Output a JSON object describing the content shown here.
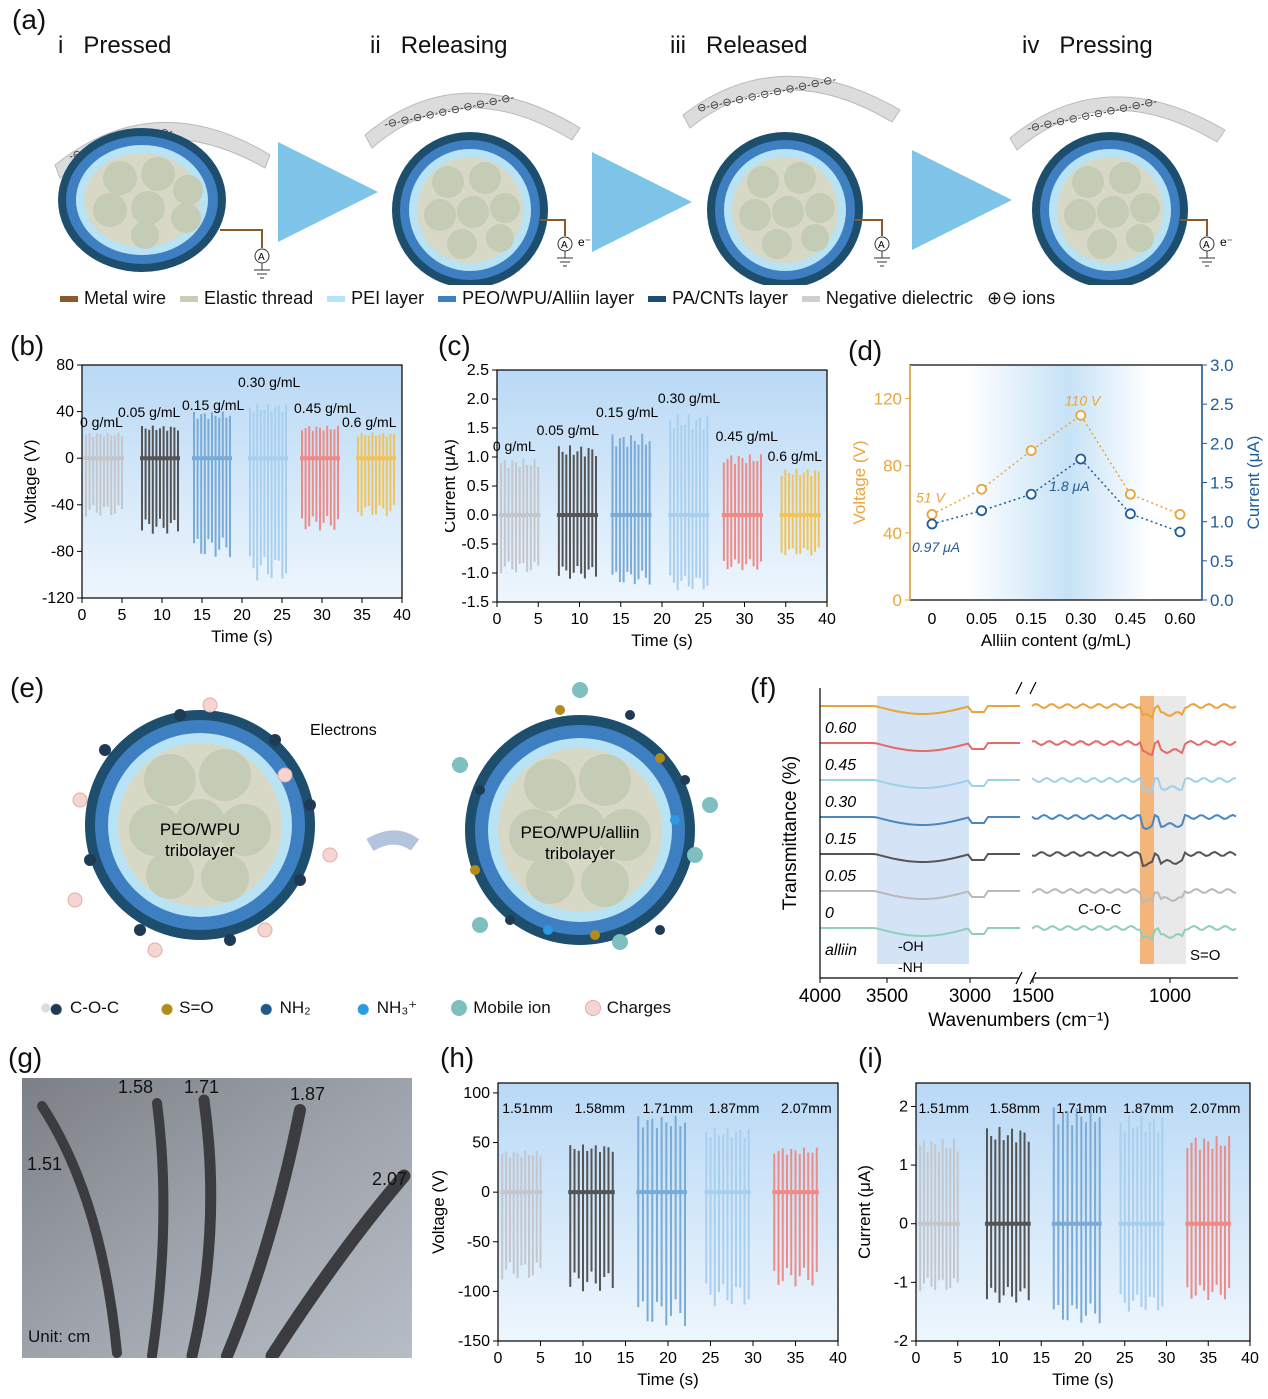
{
  "panel_a": {
    "label": "(a)",
    "stages": [
      {
        "num": "i",
        "name": "Pressed",
        "arc": "-⊖-⊖-⊖-⊖-⊖-⊖-⊖-⊖-"
      },
      {
        "num": "ii",
        "name": "Releasing",
        "arc": "-⊖-⊖-⊖-⊖-⊖-⊖-⊖-⊖-⊖-⊖-"
      },
      {
        "num": "iii",
        "name": "Released",
        "arc": "⊖-⊖-⊖-⊖-⊖-⊖-⊖-⊖-⊖-⊖-⊖-"
      },
      {
        "num": "iv",
        "name": "Pressing",
        "arc": "-⊖-⊖-⊖-⊖-⊖-⊖-⊖-⊖-⊖-⊖-"
      }
    ],
    "electron_label": "e⁻",
    "ammeter": "A",
    "legend": [
      {
        "label": "Metal wire",
        "color": "#8b5a2b"
      },
      {
        "label": "Elastic thread",
        "color": "#c9cdb8"
      },
      {
        "label": "PEI layer",
        "color": "#b7e3f5"
      },
      {
        "label": "PEO/WPU/Alliin layer",
        "color": "#3d7fc0"
      },
      {
        "label": "PA/CNTs layer",
        "color": "#1e4e6e"
      },
      {
        "label": "Negative dielectric",
        "color": "#cfcfcf"
      },
      {
        "label": "⊕⊖ ions",
        "color": ""
      }
    ]
  },
  "panel_b": {
    "label": "(b)",
    "chart_data": {
      "type": "line",
      "xlabel": "Time (s)",
      "ylabel": "Voltage (V)",
      "xlim": [
        0,
        40
      ],
      "ylim": [
        -120,
        80
      ],
      "xticks": [
        "0",
        "5",
        "10",
        "15",
        "20",
        "25",
        "30",
        "35",
        "40"
      ],
      "yticks": [
        "-120",
        "-80",
        "-40",
        "0",
        "40",
        "80"
      ],
      "series": [
        {
          "name": "0 g/mL",
          "color": "#c4c6cc",
          "x_range": [
            0.5,
            5
          ],
          "peak": 22,
          "valley": -50
        },
        {
          "name": "0.05 g/mL",
          "color": "#555555",
          "x_range": [
            7.5,
            12
          ],
          "peak": 28,
          "valley": -65
        },
        {
          "name": "0.15 g/mL",
          "color": "#7aaad6",
          "x_range": [
            14,
            18.5
          ],
          "peak": 40,
          "valley": -85
        },
        {
          "name": "0.30 g/mL",
          "color": "#a9cfee",
          "x_range": [
            21,
            25.5
          ],
          "peak": 47,
          "valley": -105
        },
        {
          "name": "0.45 g/mL",
          "color": "#ee8b86",
          "x_range": [
            27.5,
            32
          ],
          "peak": 28,
          "valley": -62
        },
        {
          "name": "0.6 g/mL",
          "color": "#f0c45a",
          "x_range": [
            34.5,
            39
          ],
          "peak": 22,
          "valley": -50
        }
      ]
    }
  },
  "panel_c": {
    "label": "(c)",
    "chart_data": {
      "type": "line",
      "xlabel": "Time (s)",
      "ylabel": "Current (μA)",
      "xlim": [
        0,
        40
      ],
      "ylim": [
        -1.5,
        2.5
      ],
      "xticks": [
        "0",
        "5",
        "10",
        "15",
        "20",
        "25",
        "30",
        "35",
        "40"
      ],
      "yticks": [
        "-1.5",
        "-1.0",
        "-0.5",
        "0.0",
        "0.5",
        "1.0",
        "1.5",
        "2.0",
        "2.5"
      ],
      "series": [
        {
          "name": "0 g/mL",
          "color": "#c4c6cc",
          "x_range": [
            0.5,
            5
          ],
          "peak": 0.97,
          "valley": -1.0
        },
        {
          "name": "0.05 g/mL",
          "color": "#555555",
          "x_range": [
            7.5,
            12
          ],
          "peak": 1.2,
          "valley": -1.1
        },
        {
          "name": "0.15 g/mL",
          "color": "#7aaad6",
          "x_range": [
            14,
            18.5
          ],
          "peak": 1.4,
          "valley": -1.2
        },
        {
          "name": "0.30 g/mL",
          "color": "#a9cfee",
          "x_range": [
            21,
            25.5
          ],
          "peak": 1.75,
          "valley": -1.3
        },
        {
          "name": "0.45 g/mL",
          "color": "#ee8b86",
          "x_range": [
            27.5,
            32
          ],
          "peak": 1.05,
          "valley": -0.95
        },
        {
          "name": "0.6 g/mL",
          "color": "#f0c45a",
          "x_range": [
            34.5,
            39
          ],
          "peak": 0.8,
          "valley": -0.7
        }
      ]
    }
  },
  "panel_d": {
    "label": "(d)",
    "chart_data": {
      "type": "line",
      "xlabel": "Alliin content (g/mL)",
      "ylabel_left": "Voltage (V)",
      "ylabel_right": "Current (μA)",
      "categories": [
        "0",
        "0.05",
        "0.15",
        "0.30",
        "0.45",
        "0.60"
      ],
      "ylim_left": [
        0,
        140
      ],
      "ylim_right": [
        0,
        3.0
      ],
      "yticks_left": [
        "0",
        "40",
        "80",
        "120"
      ],
      "yticks_right": [
        "0.0",
        "0.5",
        "1.0",
        "1.5",
        "2.0",
        "2.5",
        "3.0"
      ],
      "series": [
        {
          "name": "Voltage",
          "axis": "left",
          "color": "#e8a53a",
          "values": [
            51,
            66,
            89,
            110,
            63,
            51
          ]
        },
        {
          "name": "Current",
          "axis": "right",
          "color": "#1f5c99",
          "values": [
            0.97,
            1.14,
            1.35,
            1.8,
            1.1,
            0.87
          ]
        }
      ],
      "annotations": [
        "51 V",
        "110 V",
        "1.8 μA",
        "0.97 μA"
      ]
    }
  },
  "panel_e": {
    "label": "(e)",
    "left_text": [
      "PEO/WPU",
      "tribolayer"
    ],
    "right_text": [
      "PEO/WPU/alliin",
      "tribolayer"
    ],
    "electrons_label": "Electrons",
    "legend": [
      "C-O-C",
      "S=O",
      "NH₂",
      "NH₃⁺",
      "Mobile ion",
      "Charges"
    ]
  },
  "panel_f": {
    "label": "(f)",
    "ylabel": "Transmittance (%)",
    "xlabel": "Wavenumbers (cm⁻¹)",
    "xticks": [
      "4000",
      "3500",
      "3000",
      "1500",
      "1000"
    ],
    "traces": [
      {
        "name": "0.60",
        "color": "#e8a53a"
      },
      {
        "name": "0.45",
        "color": "#e36a66"
      },
      {
        "name": "0.30",
        "color": "#9fd0ea"
      },
      {
        "name": "0.15",
        "color": "#4a86c2"
      },
      {
        "name": "0.05",
        "color": "#555555"
      },
      {
        "name": "0",
        "color": "#b9b9b9"
      },
      {
        "name": "alliin",
        "color": "#8fcfb8"
      }
    ],
    "annotations": {
      "coc": "C-O-C",
      "so": "S=O",
      "oh": "-OH",
      "nh": "-NH"
    }
  },
  "panel_g": {
    "label": "(g)",
    "diameters": [
      "1.51",
      "1.58",
      "1.71",
      "1.87",
      "2.07"
    ],
    "unit": "Unit: cm"
  },
  "panel_h": {
    "label": "(h)",
    "chart_data": {
      "type": "line",
      "xlabel": "Time (s)",
      "ylabel": "Voltage (V)",
      "xlim": [
        0,
        40
      ],
      "ylim": [
        -150,
        110
      ],
      "xticks": [
        "0",
        "5",
        "10",
        "15",
        "20",
        "25",
        "30",
        "35",
        "40"
      ],
      "yticks": [
        "-150",
        "-100",
        "-50",
        "0",
        "50",
        "100"
      ],
      "series": [
        {
          "name": "1.51mm",
          "color": "#c4c6cc",
          "x_range": [
            0.5,
            5
          ],
          "peak": 42,
          "valley": -88
        },
        {
          "name": "1.58mm",
          "color": "#555555",
          "x_range": [
            8.5,
            13.5
          ],
          "peak": 48,
          "valley": -100
        },
        {
          "name": "1.71mm",
          "color": "#7aaad6",
          "x_range": [
            16.5,
            22
          ],
          "peak": 77,
          "valley": -135
        },
        {
          "name": "1.87mm",
          "color": "#a9cfee",
          "x_range": [
            24.5,
            29.5
          ],
          "peak": 65,
          "valley": -115
        },
        {
          "name": "2.07mm",
          "color": "#ee8b86",
          "x_range": [
            32.5,
            37.5
          ],
          "peak": 45,
          "valley": -95
        }
      ]
    }
  },
  "panel_i": {
    "label": "(i)",
    "chart_data": {
      "type": "line",
      "xlabel": "Time (s)",
      "ylabel": "Current (μA)",
      "xlim": [
        0,
        40
      ],
      "ylim": [
        -2,
        2.4
      ],
      "xticks": [
        "0",
        "5",
        "10",
        "15",
        "20",
        "25",
        "30",
        "35",
        "40"
      ],
      "yticks": [
        "-2",
        "-1",
        "0",
        "1",
        "2"
      ],
      "series": [
        {
          "name": "1.51mm",
          "color": "#c4c6cc",
          "x_range": [
            0.5,
            5
          ],
          "peak": 1.45,
          "valley": -1.15
        },
        {
          "name": "1.58mm",
          "color": "#555555",
          "x_range": [
            8.5,
            13.5
          ],
          "peak": 1.65,
          "valley": -1.35
        },
        {
          "name": "1.71mm",
          "color": "#7aaad6",
          "x_range": [
            16.5,
            22
          ],
          "peak": 2.0,
          "valley": -1.7
        },
        {
          "name": "1.87mm",
          "color": "#a9cfee",
          "x_range": [
            24.5,
            29.5
          ],
          "peak": 1.85,
          "valley": -1.5
        },
        {
          "name": "2.07mm",
          "color": "#ee8b86",
          "x_range": [
            32.5,
            37.5
          ],
          "peak": 1.5,
          "valley": -1.3
        }
      ]
    }
  }
}
